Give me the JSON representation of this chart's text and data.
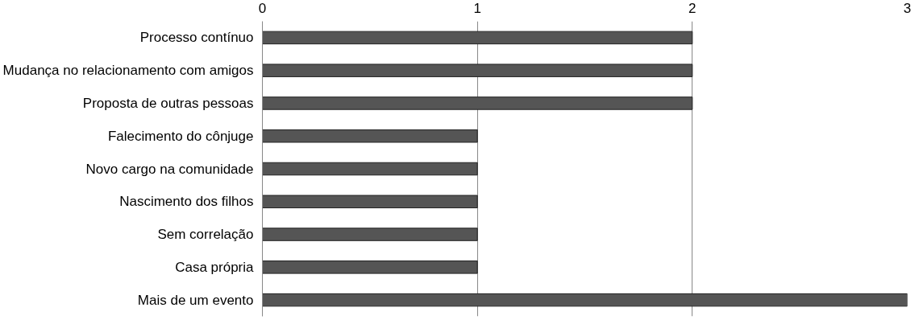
{
  "chart_data": {
    "type": "bar",
    "orientation": "horizontal",
    "categories": [
      "Processo contínuo",
      "Mudança no relacionamento com amigos",
      "Proposta de outras pessoas",
      "Falecimento do cônjuge",
      "Novo cargo na comunidade",
      "Nascimento dos filhos",
      "Sem correlação",
      "Casa própria",
      "Mais de um evento"
    ],
    "values": [
      2,
      2,
      2,
      1,
      1,
      1,
      1,
      1,
      3
    ],
    "color": "#555555",
    "xlim": [
      0,
      3
    ],
    "xticks": [
      0,
      1,
      2,
      3
    ],
    "grid": "x"
  }
}
